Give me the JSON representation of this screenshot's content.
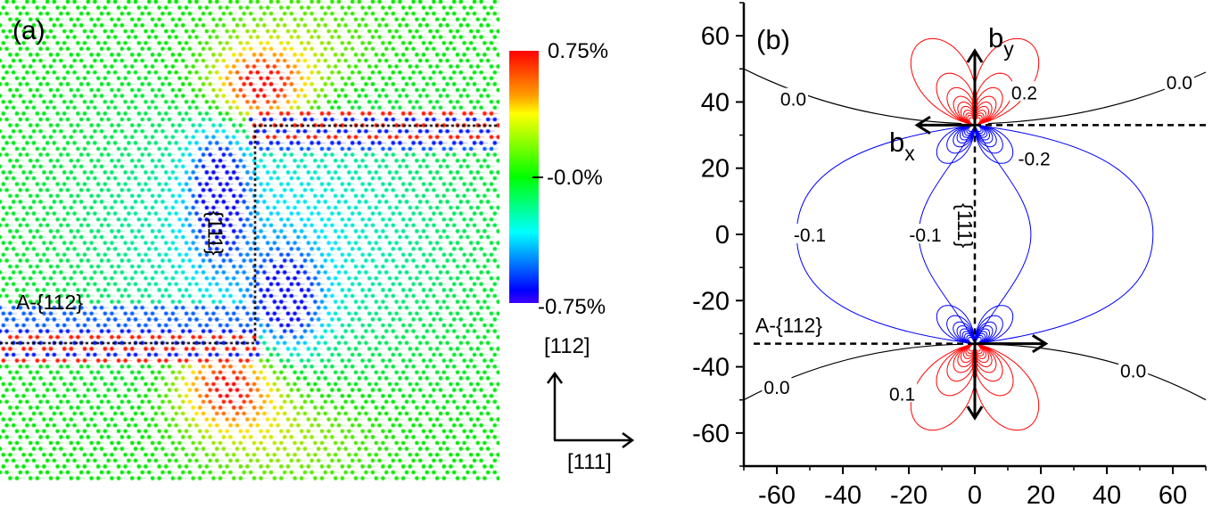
{
  "panel_a": {
    "label": "(a)",
    "boundary_112_label": "A-{112}",
    "boundary_111_label": "{111}",
    "colorbar": {
      "max_label": "0.75%",
      "mid_label": "-0.0%",
      "min_label": "-0.75%",
      "colors": [
        "#0000ff",
        "#00ffff",
        "#00ff00",
        "#ffff00",
        "#ff0000"
      ]
    },
    "axes_labels": {
      "vertical": "[112]",
      "horizontal": "[111]"
    }
  },
  "chart_data": {
    "type": "contour",
    "title": "(b)",
    "xlim": [
      -70,
      70
    ],
    "ylim": [
      -70,
      70
    ],
    "xticks": [
      -60,
      -40,
      -20,
      0,
      20,
      40,
      60
    ],
    "yticks": [
      60,
      40,
      20,
      0,
      -20,
      -40,
      -60
    ],
    "xlabel": "",
    "ylabel": "",
    "grid": false,
    "dislocations": [
      {
        "x": 0,
        "y": 33
      },
      {
        "x": 0,
        "y": -33
      }
    ],
    "contour_colors": {
      "positive": "#ff0000",
      "negative": "#0000ff",
      "zero": "#000000"
    },
    "contour_labels": [
      {
        "text": "0.0",
        "x": -55,
        "y": 41
      },
      {
        "text": "0.0",
        "x": 62,
        "y": 46
      },
      {
        "text": "0.2",
        "x": 15,
        "y": 43
      },
      {
        "text": "-0.2",
        "x": 18,
        "y": 23
      },
      {
        "text": "-0.1",
        "x": -50,
        "y": 0
      },
      {
        "text": "-0.1",
        "x": -15,
        "y": 0
      },
      {
        "text": "0.0",
        "x": -60,
        "y": -46
      },
      {
        "text": "0.1",
        "x": -22,
        "y": -48
      },
      {
        "text": "0.0",
        "x": 48,
        "y": -41
      }
    ],
    "annotations": {
      "by": {
        "main": "b",
        "sub": "y"
      },
      "bx": {
        "main": "b",
        "sub": "x"
      },
      "plane_111": "{111}",
      "plane_112": "A-{112}"
    }
  }
}
